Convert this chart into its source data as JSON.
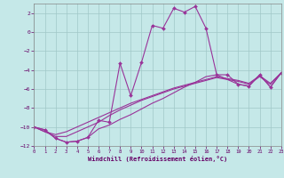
{
  "xlabel": "Windchill (Refroidissement éolien,°C)",
  "background_color": "#c5e8e8",
  "grid_color": "#a0c8c8",
  "line_color": "#993399",
  "xlim": [
    0,
    23
  ],
  "ylim": [
    -12,
    3
  ],
  "xticks": [
    0,
    1,
    2,
    3,
    4,
    5,
    6,
    7,
    8,
    9,
    10,
    11,
    12,
    13,
    14,
    15,
    16,
    17,
    18,
    19,
    20,
    21,
    22,
    23
  ],
  "yticks": [
    -12,
    -10,
    -8,
    -6,
    -4,
    -2,
    0,
    2
  ],
  "series_main": [
    [
      0,
      -10.0
    ],
    [
      1,
      -10.3
    ],
    [
      2,
      -11.2
    ],
    [
      3,
      -11.6
    ],
    [
      4,
      -11.5
    ],
    [
      5,
      -11.1
    ],
    [
      6,
      -9.3
    ],
    [
      7,
      -9.5
    ],
    [
      8,
      -3.3
    ],
    [
      9,
      -6.7
    ],
    [
      10,
      -3.2
    ],
    [
      11,
      0.7
    ],
    [
      12,
      0.4
    ],
    [
      13,
      2.5
    ],
    [
      14,
      2.1
    ],
    [
      15,
      2.7
    ],
    [
      16,
      0.4
    ],
    [
      17,
      -4.5
    ],
    [
      18,
      -4.5
    ],
    [
      19,
      -5.5
    ],
    [
      20,
      -5.7
    ],
    [
      21,
      -4.5
    ],
    [
      22,
      -5.8
    ],
    [
      23,
      -4.3
    ]
  ],
  "series_diag1": [
    [
      0,
      -10.0
    ],
    [
      1,
      -10.3
    ],
    [
      2,
      -11.2
    ],
    [
      3,
      -11.6
    ],
    [
      4,
      -11.5
    ],
    [
      5,
      -11.1
    ],
    [
      6,
      -10.2
    ],
    [
      7,
      -9.8
    ],
    [
      8,
      -9.2
    ],
    [
      9,
      -8.7
    ],
    [
      10,
      -8.1
    ],
    [
      11,
      -7.5
    ],
    [
      12,
      -7.0
    ],
    [
      13,
      -6.4
    ],
    [
      14,
      -5.8
    ],
    [
      15,
      -5.3
    ],
    [
      16,
      -4.7
    ],
    [
      17,
      -4.5
    ],
    [
      18,
      -5.0
    ],
    [
      19,
      -5.5
    ],
    [
      20,
      -5.7
    ],
    [
      21,
      -4.5
    ],
    [
      22,
      -5.8
    ],
    [
      23,
      -4.3
    ]
  ],
  "series_diag2": [
    [
      0,
      -10.0
    ],
    [
      1,
      -10.5
    ],
    [
      2,
      -11.0
    ],
    [
      3,
      -11.0
    ],
    [
      4,
      -10.5
    ],
    [
      5,
      -10.0
    ],
    [
      6,
      -9.5
    ],
    [
      7,
      -8.8
    ],
    [
      8,
      -8.2
    ],
    [
      9,
      -7.7
    ],
    [
      10,
      -7.2
    ],
    [
      11,
      -6.8
    ],
    [
      12,
      -6.4
    ],
    [
      13,
      -6.0
    ],
    [
      14,
      -5.7
    ],
    [
      15,
      -5.4
    ],
    [
      16,
      -5.1
    ],
    [
      17,
      -4.8
    ],
    [
      18,
      -5.0
    ],
    [
      19,
      -5.2
    ],
    [
      20,
      -5.5
    ],
    [
      21,
      -4.7
    ],
    [
      22,
      -5.5
    ],
    [
      23,
      -4.3
    ]
  ],
  "series_diag3": [
    [
      0,
      -10.0
    ],
    [
      1,
      -10.5
    ],
    [
      2,
      -10.8
    ],
    [
      3,
      -10.5
    ],
    [
      4,
      -10.0
    ],
    [
      5,
      -9.5
    ],
    [
      6,
      -9.0
    ],
    [
      7,
      -8.5
    ],
    [
      8,
      -8.0
    ],
    [
      9,
      -7.5
    ],
    [
      10,
      -7.1
    ],
    [
      11,
      -6.7
    ],
    [
      12,
      -6.3
    ],
    [
      13,
      -5.9
    ],
    [
      14,
      -5.6
    ],
    [
      15,
      -5.3
    ],
    [
      16,
      -5.0
    ],
    [
      17,
      -4.7
    ],
    [
      18,
      -4.9
    ],
    [
      19,
      -5.1
    ],
    [
      20,
      -5.4
    ],
    [
      21,
      -4.6
    ],
    [
      22,
      -5.4
    ],
    [
      23,
      -4.3
    ]
  ]
}
